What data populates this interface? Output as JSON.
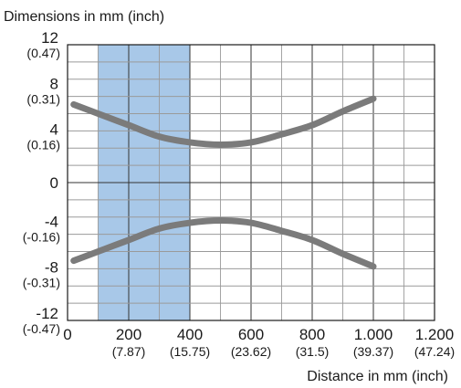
{
  "chart_data": {
    "type": "line",
    "ylabel": "Dimensions in mm (inch)",
    "xlabel": "Distance in mm (inch)",
    "xlim": [
      0,
      1200
    ],
    "ylim": [
      -12,
      12
    ],
    "grid": true,
    "x_ticks": [
      {
        "value": 0,
        "label": "0",
        "sub": ""
      },
      {
        "value": 200,
        "label": "200",
        "sub": "(7.87)"
      },
      {
        "value": 400,
        "label": "400",
        "sub": "(15.75)"
      },
      {
        "value": 600,
        "label": "600",
        "sub": "(23.62)"
      },
      {
        "value": 800,
        "label": "800",
        "sub": "(31.5)"
      },
      {
        "value": 1000,
        "label": "1.000",
        "sub": "(39.37)"
      },
      {
        "value": 1200,
        "label": "1.200",
        "sub": "(47.24)"
      }
    ],
    "y_ticks": [
      {
        "value": 12,
        "label": "12",
        "sub": "(0.47)"
      },
      {
        "value": 8,
        "label": "8",
        "sub": "(0.31)"
      },
      {
        "value": 4,
        "label": "4",
        "sub": "(0.16)"
      },
      {
        "value": 0,
        "label": "0",
        "sub": ""
      },
      {
        "value": -4,
        "label": "-4",
        "sub": "(-0.16)"
      },
      {
        "value": -8,
        "label": "-8",
        "sub": "(-0.31)"
      },
      {
        "value": -12,
        "label": "-12",
        "sub": "(-0.47)"
      }
    ],
    "highlight_band": {
      "x_from": 100,
      "x_to": 400,
      "color": "#a8c8e8"
    },
    "series": [
      {
        "color": "#7b7b7b",
        "x": [
          20,
          100,
          200,
          300,
          400,
          500,
          600,
          700,
          800,
          900,
          1000
        ],
        "y": [
          6.8,
          6.0,
          5.0,
          4.0,
          3.5,
          3.3,
          3.5,
          4.2,
          5.0,
          6.2,
          7.3
        ]
      },
      {
        "color": "#7b7b7b",
        "x": [
          20,
          100,
          200,
          300,
          400,
          500,
          600,
          700,
          800,
          900,
          1000
        ],
        "y": [
          -6.8,
          -6.0,
          -5.0,
          -4.0,
          -3.5,
          -3.3,
          -3.5,
          -4.2,
          -5.0,
          -6.2,
          -7.3
        ]
      }
    ]
  }
}
